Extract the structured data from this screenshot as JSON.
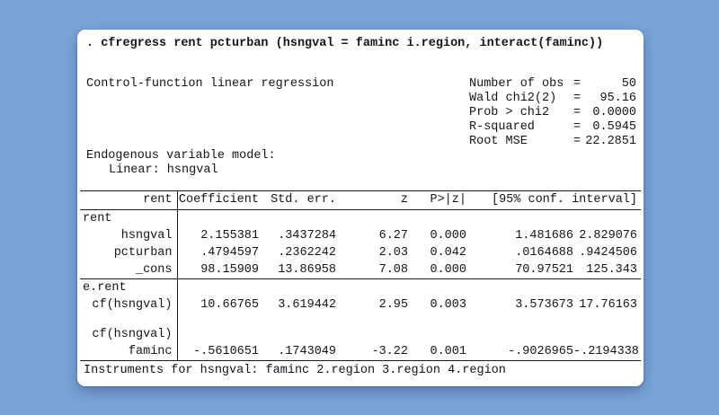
{
  "colors": {
    "background": "#7aa4d8",
    "card": "#ffffff",
    "text": "#12151a",
    "rule": "#1a1a1a"
  },
  "command": ". cfregress rent pcturban (hsngval = faminc i.region, interact(faminc))",
  "title": "Control-function linear regression",
  "stats": [
    {
      "label": "Number of obs",
      "eq": "=",
      "value": "50"
    },
    {
      "label": "Wald chi2(2)",
      "eq": "=",
      "value": "95.16"
    },
    {
      "label": "Prob > chi2",
      "eq": "=",
      "value": "0.0000"
    },
    {
      "label": "R-squared",
      "eq": "=",
      "value": "0.5945"
    },
    {
      "label": "Root MSE",
      "eq": "=",
      "value": "22.2851"
    }
  ],
  "endogenous": {
    "line1": "Endogenous variable model:",
    "line2": "Linear: hsngval"
  },
  "table": {
    "depvar": "rent",
    "columns": [
      "Coefficient",
      "Std. err.",
      "z",
      "P>|z|",
      "[95% conf. interval]"
    ],
    "rows": [
      {
        "type": "group",
        "label": "rent",
        "cells": [
          "",
          "",
          "",
          "",
          "",
          ""
        ]
      },
      {
        "type": "data",
        "label": "hsngval",
        "cells": [
          "2.155381",
          ".3437284",
          "6.27",
          "0.000",
          "1.481686",
          "2.829076"
        ]
      },
      {
        "type": "data",
        "label": "pcturban",
        "cells": [
          ".4794597",
          ".2362242",
          "2.03",
          "0.042",
          ".0164688",
          ".9424506"
        ]
      },
      {
        "type": "data",
        "label": "_cons",
        "cells": [
          "98.15909",
          "13.86958",
          "7.08",
          "0.000",
          "70.97521",
          "125.343"
        ],
        "section_end": true
      },
      {
        "type": "group",
        "label": "e.rent",
        "cells": [
          "",
          "",
          "",
          "",
          "",
          ""
        ]
      },
      {
        "type": "data",
        "label": "cf(hsngval)",
        "cells": [
          "10.66765",
          "3.619442",
          "2.95",
          "0.003",
          "3.573673",
          "17.76163"
        ]
      },
      {
        "type": "blank",
        "label": "",
        "cells": [
          "",
          "",
          "",
          "",
          "",
          ""
        ]
      },
      {
        "type": "group-right",
        "label": "cf(hsngval)",
        "cells": [
          "",
          "",
          "",
          "",
          "",
          ""
        ]
      },
      {
        "type": "data",
        "label": "faminc",
        "cells": [
          "-.5610651",
          ".1743049",
          "-3.22",
          "0.001",
          "-.9026965",
          "-.2194338"
        ]
      }
    ]
  },
  "footer": "Instruments for hsngval: faminc 2.region 3.region 4.region"
}
